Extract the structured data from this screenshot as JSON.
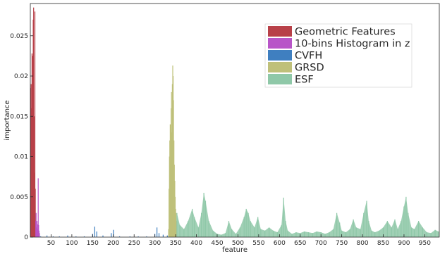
{
  "chart_data": {
    "type": "bar",
    "xlabel": "feature",
    "ylabel": "importance",
    "xlim": [
      0,
      985
    ],
    "ylim": [
      0,
      0.029
    ],
    "x_ticks": [
      50,
      100,
      150,
      200,
      250,
      300,
      350,
      400,
      450,
      500,
      550,
      600,
      650,
      700,
      750,
      800,
      850,
      900,
      950
    ],
    "x_tick_labels": [
      "50",
      "100",
      "150",
      "200",
      "250",
      "300",
      "350",
      "400",
      "450",
      "500",
      "550",
      "600",
      "650",
      "700",
      "750",
      "800",
      "850",
      "900",
      "950"
    ],
    "y_ticks": [
      0,
      0.005,
      0.01,
      0.015,
      0.02,
      0.025
    ],
    "y_tick_labels": [
      "0",
      "0.005",
      "0.01",
      "0.015",
      "0.02",
      "0.025"
    ],
    "grid": false,
    "legend_position": "top-right",
    "series": [
      {
        "name": "Geometric Features",
        "color": "#b84048",
        "points": [
          [
            1,
            0.0185
          ],
          [
            2,
            0.019
          ],
          [
            3,
            0.016
          ],
          [
            4,
            0.0228
          ],
          [
            5,
            0.0225
          ],
          [
            6,
            0.012
          ],
          [
            7,
            0.027
          ],
          [
            8,
            0.0285
          ],
          [
            9,
            0.015
          ],
          [
            10,
            0.008
          ],
          [
            11,
            0.028
          ],
          [
            12,
            0.006
          ]
        ]
      },
      {
        "name": "10-bins Histogram in z",
        "color": "#b855c8",
        "points": [
          [
            13,
            0.002
          ],
          [
            14,
            0.003
          ],
          [
            15,
            0.0012
          ],
          [
            16,
            0.002
          ],
          [
            17,
            0.0016
          ],
          [
            18,
            0.001
          ],
          [
            19,
            0.0073
          ],
          [
            20,
            0.0015
          ],
          [
            21,
            0.0008
          ],
          [
            22,
            0.0005
          ]
        ]
      },
      {
        "name": "CVFH",
        "color": "#3f7fc0",
        "points": [
          [
            25,
            0.0001
          ],
          [
            40,
            0.0002
          ],
          [
            55,
            0.0001
          ],
          [
            70,
            0.0001
          ],
          [
            90,
            0.0002
          ],
          [
            110,
            0.0001
          ],
          [
            130,
            0.0001
          ],
          [
            150,
            0.0004
          ],
          [
            155,
            0.0013
          ],
          [
            160,
            0.0007
          ],
          [
            175,
            0.0002
          ],
          [
            195,
            0.0005
          ],
          [
            200,
            0.0009
          ],
          [
            215,
            0.0001
          ],
          [
            240,
            0.0001
          ],
          [
            260,
            0.0001
          ],
          [
            280,
            0.0001
          ],
          [
            300,
            0.0004
          ],
          [
            305,
            0.0012
          ],
          [
            310,
            0.0005
          ],
          [
            320,
            0.0003
          ],
          [
            330,
            0.0002
          ]
        ]
      },
      {
        "name": "GRSD",
        "color": "#bfc07a",
        "points": [
          [
            333,
            0.001
          ],
          [
            334,
            0.006
          ],
          [
            335,
            0.01
          ],
          [
            336,
            0.012
          ],
          [
            337,
            0.014
          ],
          [
            338,
            0.009
          ],
          [
            339,
            0.016
          ],
          [
            340,
            0.018
          ],
          [
            341,
            0.013
          ],
          [
            342,
            0.019
          ],
          [
            343,
            0.0213
          ],
          [
            344,
            0.02
          ],
          [
            345,
            0.017
          ],
          [
            346,
            0.012
          ],
          [
            347,
            0.009
          ],
          [
            348,
            0.007
          ],
          [
            349,
            0.005
          ],
          [
            350,
            0.0035
          ],
          [
            351,
            0.003
          ],
          [
            352,
            0.002
          ]
        ]
      },
      {
        "name": "ESF",
        "color": "#8fc8a8",
        "points": [
          [
            353,
            0.003
          ],
          [
            360,
            0.0015
          ],
          [
            370,
            0.001
          ],
          [
            380,
            0.002
          ],
          [
            390,
            0.0035
          ],
          [
            395,
            0.0025
          ],
          [
            405,
            0.0012
          ],
          [
            412,
            0.003
          ],
          [
            418,
            0.0055
          ],
          [
            422,
            0.0045
          ],
          [
            430,
            0.002
          ],
          [
            440,
            0.0008
          ],
          [
            450,
            0.0004
          ],
          [
            460,
            0.0003
          ],
          [
            470,
            0.0005
          ],
          [
            478,
            0.002
          ],
          [
            485,
            0.001
          ],
          [
            495,
            0.0004
          ],
          [
            505,
            0.0012
          ],
          [
            515,
            0.0025
          ],
          [
            520,
            0.0035
          ],
          [
            525,
            0.003
          ],
          [
            530,
            0.002
          ],
          [
            540,
            0.0012
          ],
          [
            548,
            0.0025
          ],
          [
            555,
            0.001
          ],
          [
            565,
            0.0008
          ],
          [
            575,
            0.0012
          ],
          [
            585,
            0.0008
          ],
          [
            595,
            0.0006
          ],
          [
            605,
            0.0015
          ],
          [
            610,
            0.0049
          ],
          [
            615,
            0.002
          ],
          [
            620,
            0.0008
          ],
          [
            630,
            0.0004
          ],
          [
            640,
            0.0006
          ],
          [
            650,
            0.0005
          ],
          [
            660,
            0.0007
          ],
          [
            670,
            0.0006
          ],
          [
            680,
            0.0005
          ],
          [
            690,
            0.0007
          ],
          [
            700,
            0.0006
          ],
          [
            710,
            0.0004
          ],
          [
            720,
            0.0006
          ],
          [
            730,
            0.001
          ],
          [
            738,
            0.003
          ],
          [
            745,
            0.0018
          ],
          [
            750,
            0.0008
          ],
          [
            760,
            0.0006
          ],
          [
            770,
            0.001
          ],
          [
            778,
            0.0022
          ],
          [
            785,
            0.0012
          ],
          [
            795,
            0.001
          ],
          [
            803,
            0.003
          ],
          [
            810,
            0.0045
          ],
          [
            815,
            0.002
          ],
          [
            822,
            0.0008
          ],
          [
            830,
            0.0006
          ],
          [
            840,
            0.0008
          ],
          [
            850,
            0.0012
          ],
          [
            860,
            0.002
          ],
          [
            870,
            0.0012
          ],
          [
            878,
            0.0022
          ],
          [
            885,
            0.001
          ],
          [
            893,
            0.002
          ],
          [
            900,
            0.0038
          ],
          [
            905,
            0.005
          ],
          [
            910,
            0.003
          ],
          [
            918,
            0.0012
          ],
          [
            925,
            0.001
          ],
          [
            935,
            0.002
          ],
          [
            945,
            0.0012
          ],
          [
            955,
            0.0006
          ],
          [
            965,
            0.0005
          ],
          [
            975,
            0.0009
          ],
          [
            983,
            0.0007
          ]
        ]
      }
    ]
  }
}
